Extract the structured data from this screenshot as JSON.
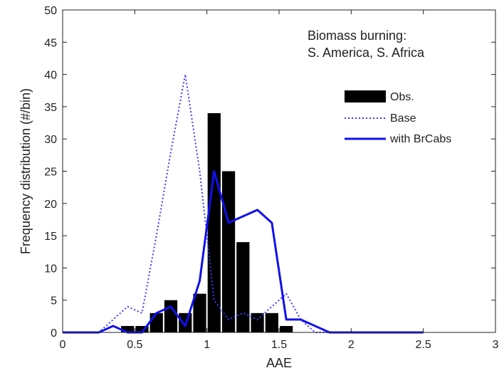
{
  "chart_data": {
    "type": "bar",
    "annotation_lines": [
      "Biomass burning:",
      "S. America, S. Africa"
    ],
    "xlabel": "AAE",
    "ylabel": "Frequency distribution (#/bin)",
    "xlim": [
      0,
      3
    ],
    "ylim": [
      0,
      50
    ],
    "xticks": [
      0,
      0.5,
      1,
      1.5,
      2,
      2.5,
      3
    ],
    "yticks": [
      0,
      5,
      10,
      15,
      20,
      25,
      30,
      35,
      40,
      45,
      50
    ],
    "xtick_labels": [
      "0",
      "0.5",
      "1",
      "1.5",
      "2",
      "2.5",
      "3"
    ],
    "ytick_labels": [
      "0",
      "5",
      "10",
      "15",
      "20",
      "25",
      "30",
      "35",
      "40",
      "45",
      "50"
    ],
    "grid": false,
    "legend_position": "top-right",
    "bar_width": 0.1,
    "bars": {
      "name": "Obs.",
      "color": "#000000",
      "x": [
        0.25,
        0.35,
        0.45,
        0.55,
        0.65,
        0.75,
        0.85,
        0.95,
        1.05,
        1.15,
        1.25,
        1.35,
        1.45,
        1.55,
        1.65,
        1.75,
        1.85,
        1.95
      ],
      "values": [
        0,
        0,
        1,
        1,
        3,
        5,
        3,
        6,
        34,
        25,
        14,
        3,
        3,
        1,
        0,
        0,
        0,
        0
      ]
    },
    "lines": [
      {
        "name": "Base",
        "color": "#3a3aff",
        "style": "dotted",
        "x": [
          0.0,
          0.25,
          0.35,
          0.45,
          0.55,
          0.65,
          0.75,
          0.85,
          0.95,
          1.05,
          1.15,
          1.25,
          1.35,
          1.45,
          1.55,
          1.65,
          1.75,
          1.85,
          2.5
        ],
        "values": [
          0,
          0,
          2,
          4,
          3,
          15,
          28,
          40,
          25,
          5,
          2,
          3,
          2,
          4,
          6,
          2,
          0,
          0,
          0
        ]
      },
      {
        "name": "with BrCabs",
        "color": "#1010ee",
        "style": "solid",
        "x": [
          0.0,
          0.25,
          0.35,
          0.45,
          0.55,
          0.65,
          0.75,
          0.85,
          0.95,
          1.05,
          1.15,
          1.25,
          1.35,
          1.45,
          1.55,
          1.65,
          1.75,
          1.85,
          1.95,
          2.5
        ],
        "values": [
          0,
          0,
          1,
          0,
          0,
          3,
          4,
          1,
          8,
          25,
          17,
          18,
          19,
          17,
          2,
          2,
          1,
          0,
          0,
          0
        ]
      }
    ]
  }
}
